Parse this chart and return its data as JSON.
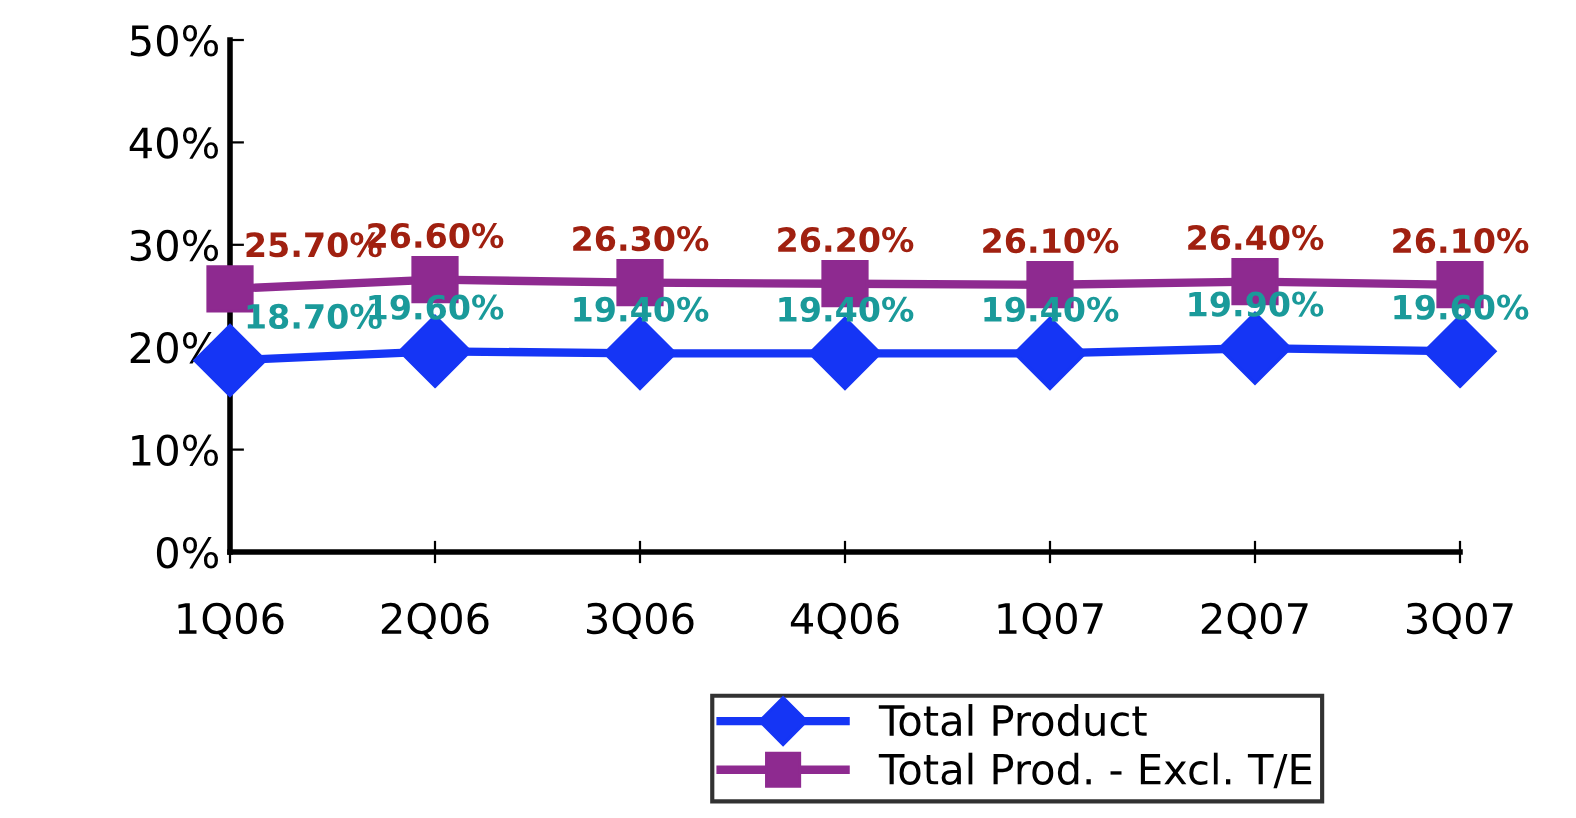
{
  "chart_data": {
    "type": "line",
    "categories": [
      "1Q06",
      "2Q06",
      "3Q06",
      "4Q06",
      "1Q07",
      "2Q07",
      "3Q07"
    ],
    "series": [
      {
        "name": "Total Product",
        "color": "#1535f5",
        "marker": "diamond",
        "values": [
          18.7,
          19.6,
          19.4,
          19.4,
          19.4,
          19.9,
          19.6
        ]
      },
      {
        "name": "Total Prod. - Excl. T/E",
        "color": "#8e2a90",
        "marker": "square",
        "values": [
          25.7,
          26.6,
          26.3,
          26.2,
          26.1,
          26.4,
          26.1
        ]
      }
    ],
    "value_labels": [
      [
        "18.70%",
        "19.60%",
        "19.40%",
        "19.40%",
        "19.40%",
        "19.90%",
        "19.60%"
      ],
      [
        "25.70%",
        "26.60%",
        "26.30%",
        "26.20%",
        "26.10%",
        "26.40%",
        "26.10%"
      ]
    ],
    "ylim": [
      0,
      50
    ],
    "yticks": [
      {
        "value": 0,
        "label": "0%"
      },
      {
        "value": 10,
        "label": "10%"
      },
      {
        "value": 20,
        "label": "20%"
      },
      {
        "value": 30,
        "label": "30%"
      },
      {
        "value": 40,
        "label": "40%"
      },
      {
        "value": 50,
        "label": "50%"
      }
    ],
    "grid": false,
    "legend": "bottom",
    "line_style": "solid"
  }
}
